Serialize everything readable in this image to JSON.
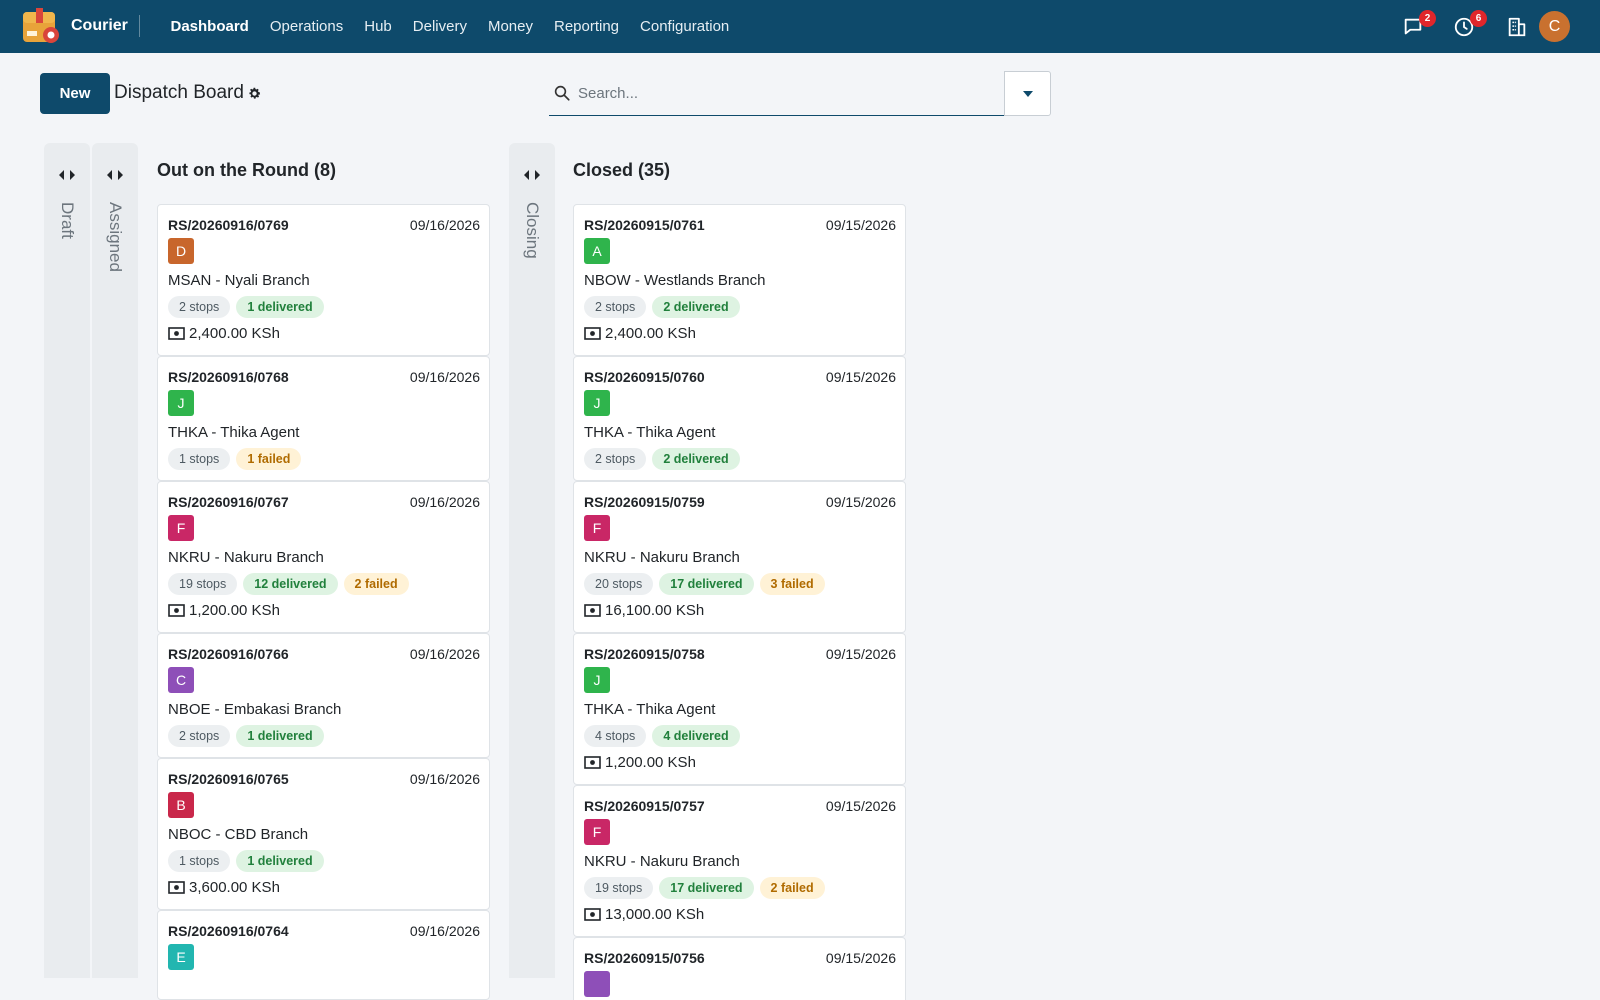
{
  "app": {
    "name": "Courier"
  },
  "nav": {
    "items": [
      {
        "label": "Dashboard",
        "active": true
      },
      {
        "label": "Operations",
        "active": false
      },
      {
        "label": "Hub",
        "active": false
      },
      {
        "label": "Delivery",
        "active": false
      },
      {
        "label": "Money",
        "active": false
      },
      {
        "label": "Reporting",
        "active": false
      },
      {
        "label": "Configuration",
        "active": false
      }
    ]
  },
  "systray": {
    "messages_count": "2",
    "activities_count": "6",
    "user_initial": "C"
  },
  "control": {
    "new_label": "New",
    "title": "Dispatch Board",
    "search_placeholder": "Search..."
  },
  "colors": {
    "brand": "#0e4a6b",
    "badge": "#e0262b",
    "user_avatar": "#c9712f"
  },
  "kanban": {
    "folded_before": [
      {
        "label": "Draft"
      },
      {
        "label": "Assigned"
      }
    ],
    "out_column": {
      "title": "Out on the Round (8)",
      "cards": [
        {
          "ref": "RS/20260916/0769",
          "date": "09/16/2026",
          "avatar": "D",
          "avatar_color": "#c8662c",
          "branch": "MSAN - Nyali Branch",
          "stops": "2 stops",
          "delivered": "1 delivered",
          "failed": "",
          "amount": "2,400.00 KSh"
        },
        {
          "ref": "RS/20260916/0768",
          "date": "09/16/2026",
          "avatar": "J",
          "avatar_color": "#2fb44c",
          "branch": "THKA - Thika Agent",
          "stops": "1 stops",
          "delivered": "",
          "failed": "1 failed",
          "amount": ""
        },
        {
          "ref": "RS/20260916/0767",
          "date": "09/16/2026",
          "avatar": "F",
          "avatar_color": "#c92766",
          "branch": "NKRU - Nakuru Branch",
          "stops": "19 stops",
          "delivered": "12 delivered",
          "failed": "2 failed",
          "amount": "1,200.00 KSh"
        },
        {
          "ref": "RS/20260916/0766",
          "date": "09/16/2026",
          "avatar": "C",
          "avatar_color": "#8e4fb8",
          "branch": "NBOE - Embakasi Branch",
          "stops": "2 stops",
          "delivered": "1 delivered",
          "failed": "",
          "amount": ""
        },
        {
          "ref": "RS/20260916/0765",
          "date": "09/16/2026",
          "avatar": "B",
          "avatar_color": "#c9274a",
          "branch": "NBOC - CBD Branch",
          "stops": "1 stops",
          "delivered": "1 delivered",
          "failed": "",
          "amount": "3,600.00 KSh"
        },
        {
          "ref": "RS/20260916/0764",
          "date": "09/16/2026",
          "avatar": "E",
          "avatar_color": "#22b6b0",
          "branch": "",
          "stops": "",
          "delivered": "",
          "failed": "",
          "amount": ""
        }
      ]
    },
    "folded_middle": {
      "label": "Closing"
    },
    "closed_column": {
      "title": "Closed (35)",
      "cards": [
        {
          "ref": "RS/20260915/0761",
          "date": "09/15/2026",
          "avatar": "A",
          "avatar_color": "#2fb44c",
          "branch": "NBOW - Westlands Branch",
          "stops": "2 stops",
          "delivered": "2 delivered",
          "failed": "",
          "amount": "2,400.00 KSh"
        },
        {
          "ref": "RS/20260915/0760",
          "date": "09/15/2026",
          "avatar": "J",
          "avatar_color": "#2fb44c",
          "branch": "THKA - Thika Agent",
          "stops": "2 stops",
          "delivered": "2 delivered",
          "failed": "",
          "amount": ""
        },
        {
          "ref": "RS/20260915/0759",
          "date": "09/15/2026",
          "avatar": "F",
          "avatar_color": "#c92766",
          "branch": "NKRU - Nakuru Branch",
          "stops": "20 stops",
          "delivered": "17 delivered",
          "failed": "3 failed",
          "amount": "16,100.00 KSh"
        },
        {
          "ref": "RS/20260915/0758",
          "date": "09/15/2026",
          "avatar": "J",
          "avatar_color": "#2fb44c",
          "branch": "THKA - Thika Agent",
          "stops": "4 stops",
          "delivered": "4 delivered",
          "failed": "",
          "amount": "1,200.00 KSh"
        },
        {
          "ref": "RS/20260915/0757",
          "date": "09/15/2026",
          "avatar": "F",
          "avatar_color": "#c92766",
          "branch": "NKRU - Nakuru Branch",
          "stops": "19 stops",
          "delivered": "17 delivered",
          "failed": "2 failed",
          "amount": "13,000.00 KSh"
        },
        {
          "ref": "RS/20260915/0756",
          "date": "09/15/2026",
          "avatar": "",
          "avatar_color": "#8e4fb8",
          "branch": "",
          "stops": "",
          "delivered": "",
          "failed": "",
          "amount": ""
        }
      ]
    }
  }
}
